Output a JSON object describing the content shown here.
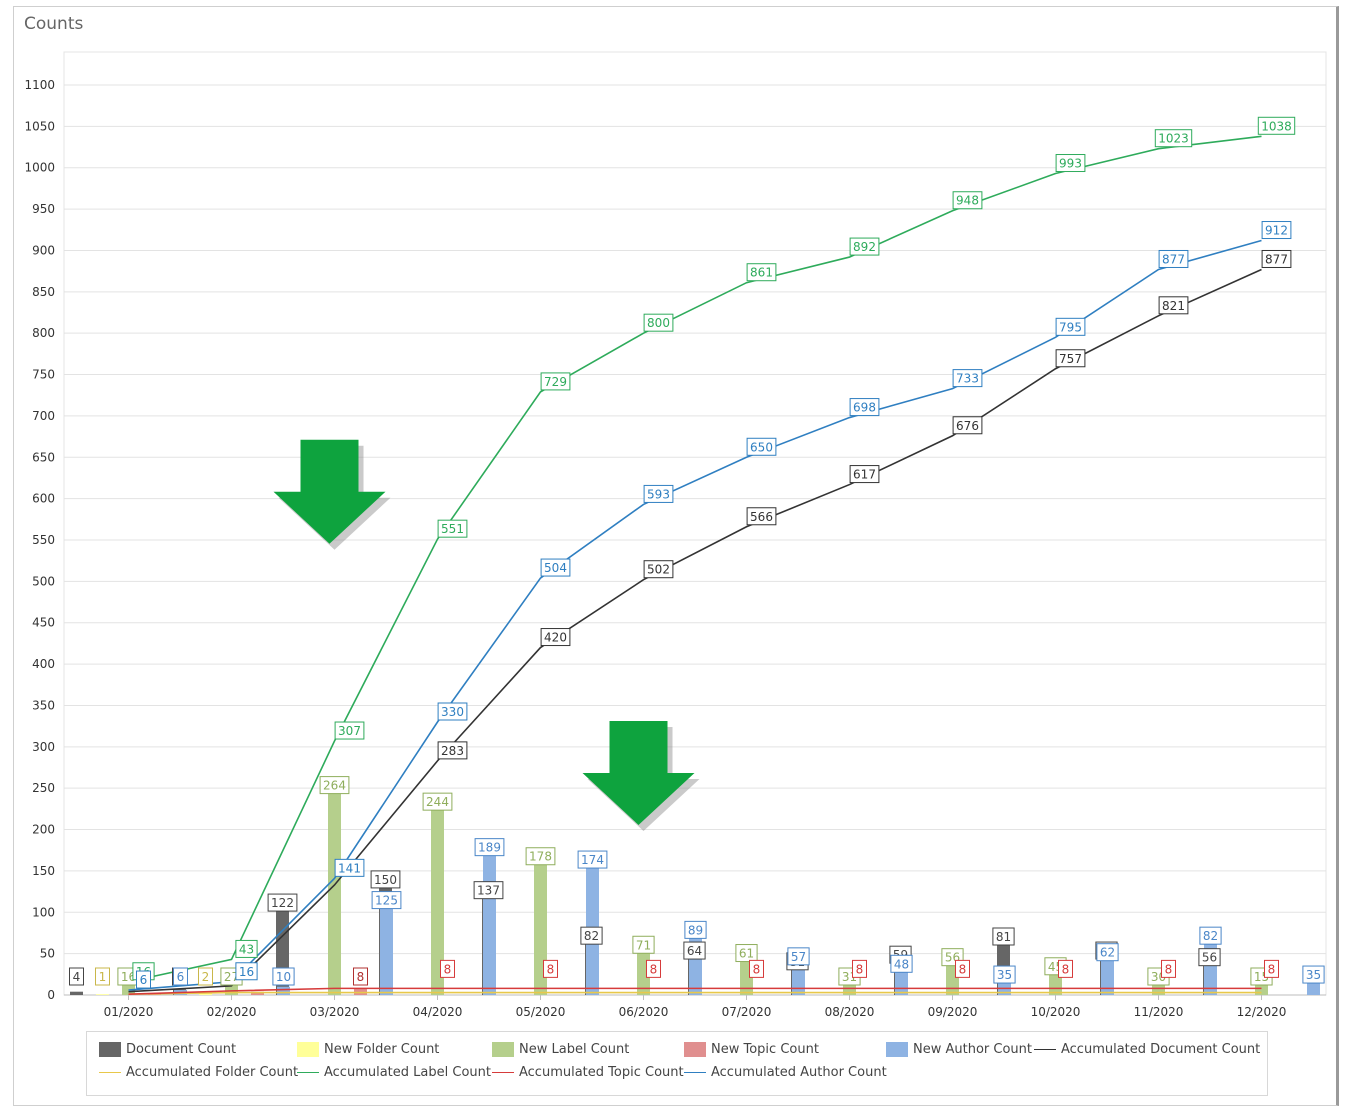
{
  "panel": {
    "title": "Counts"
  },
  "chart_data": {
    "type": "bar",
    "title": "Counts",
    "xlabel": "",
    "ylabel": "",
    "ylim": [
      0,
      1100
    ],
    "yticks": [
      0,
      50,
      100,
      150,
      200,
      250,
      300,
      350,
      400,
      450,
      500,
      550,
      600,
      650,
      700,
      750,
      800,
      850,
      900,
      950,
      1000,
      1050,
      1100
    ],
    "grid": true,
    "legend_position": "bottom",
    "categories": [
      "01/2020",
      "02/2020",
      "03/2020",
      "04/2020",
      "05/2020",
      "06/2020",
      "07/2020",
      "08/2020",
      "09/2020",
      "10/2020",
      "11/2020",
      "12/2020"
    ],
    "bar_series": [
      {
        "name": "Document Count",
        "color": "#666666",
        "values": [
          4,
          7,
          122,
          150,
          137,
          82,
          64,
          51,
          59,
          81,
          64,
          56
        ],
        "labels": [
          "4",
          "7",
          "122",
          "150",
          "137",
          "82",
          "64",
          "51",
          "59",
          "81",
          "64",
          "56"
        ]
      },
      {
        "name": "New Folder Count",
        "color": "#ffff99",
        "values": [
          1,
          2,
          0,
          0,
          0,
          0,
          0,
          0,
          0,
          0,
          0,
          0
        ],
        "labels": [
          "1",
          "2",
          "",
          "",
          "",
          "",
          "",
          "",
          "",
          "",
          "",
          ""
        ]
      },
      {
        "name": "New Label Count",
        "color": "#b5cf8c",
        "values": [
          16,
          27,
          264,
          244,
          178,
          71,
          61,
          31,
          56,
          45,
          30,
          15
        ],
        "labels": [
          "16",
          "27",
          "264",
          "244",
          "178",
          "71",
          "61",
          "31",
          "56",
          "45",
          "30",
          "15"
        ]
      },
      {
        "name": "New Topic Count",
        "color": "#e08f8f",
        "values": [
          1,
          4,
          8,
          0,
          0,
          0,
          0,
          0,
          0,
          0,
          0,
          0
        ],
        "labels": [
          "",
          "",
          "8",
          "",
          "",
          "",
          "",
          "",
          "",
          "",
          "",
          ""
        ]
      },
      {
        "name": "New Author Count",
        "color": "#8eb3e3",
        "values": [
          6,
          10,
          125,
          189,
          174,
          89,
          57,
          48,
          35,
          62,
          82,
          35
        ],
        "labels": [
          "6",
          "10",
          "125",
          "189",
          "174",
          "89",
          "57",
          "48",
          "35",
          "62",
          "82",
          "35"
        ]
      }
    ],
    "line_series": [
      {
        "name": "Accumulated Document Count",
        "color": "#333333",
        "values": [
          4,
          11,
          133,
          283,
          420,
          502,
          566,
          617,
          676,
          757,
          821,
          877
        ],
        "labels": [
          "",
          "",
          "",
          "283",
          "420",
          "502",
          "566",
          "617",
          "676",
          "757",
          "821",
          "877"
        ]
      },
      {
        "name": "Accumulated Folder Count",
        "color": "#e8c84a",
        "values": [
          1,
          3,
          3,
          3,
          3,
          3,
          3,
          3,
          3,
          3,
          3,
          3
        ],
        "labels": [
          "",
          "",
          "",
          "",
          "",
          "",
          "",
          "",
          "",
          "",
          "",
          ""
        ]
      },
      {
        "name": "Accumulated Label Count",
        "color": "#2eab5b",
        "values": [
          16,
          43,
          307,
          551,
          729,
          800,
          861,
          892,
          948,
          993,
          1023,
          1038
        ],
        "labels": [
          "16",
          "43",
          "307",
          "551",
          "729",
          "800",
          "861",
          "892",
          "948",
          "993",
          "1023",
          "1038"
        ]
      },
      {
        "name": "Accumulated Topic Count",
        "color": "#d63b3b",
        "values": [
          1,
          5,
          8,
          8,
          8,
          8,
          8,
          8,
          8,
          8,
          8,
          8
        ],
        "labels": [
          "",
          "",
          "",
          "8",
          "8",
          "8",
          "8",
          "8",
          "8",
          "8",
          "8",
          "8"
        ]
      },
      {
        "name": "Accumulated Author Count",
        "color": "#2f7fc1",
        "values": [
          6,
          16,
          141,
          330,
          504,
          593,
          650,
          698,
          733,
          795,
          877,
          912
        ],
        "labels": [
          "6",
          "16",
          "141",
          "330",
          "504",
          "593",
          "650",
          "698",
          "733",
          "795",
          "877",
          "912"
        ]
      }
    ],
    "annotations": [
      {
        "type": "arrow-down",
        "color": "#0ea33e",
        "category": "03/2020",
        "y": 560
      },
      {
        "type": "arrow-down",
        "color": "#0ea33e",
        "category": "06/2020",
        "y": 220
      }
    ]
  },
  "legend": {
    "items": [
      {
        "label": "Document Count",
        "kind": "swatch",
        "color": "#666666"
      },
      {
        "label": "New Folder Count",
        "kind": "swatch",
        "color": "#ffff99"
      },
      {
        "label": "New Label Count",
        "kind": "swatch",
        "color": "#b5cf8c"
      },
      {
        "label": "New Topic Count",
        "kind": "swatch",
        "color": "#e08f8f"
      },
      {
        "label": "New Author Count",
        "kind": "swatch",
        "color": "#8eb3e3"
      },
      {
        "label": "Accumulated Document Count",
        "kind": "line",
        "color": "#333333"
      },
      {
        "label": "Accumulated Folder Count",
        "kind": "line",
        "color": "#e8c84a"
      },
      {
        "label": "Accumulated Label Count",
        "kind": "line",
        "color": "#2eab5b"
      },
      {
        "label": "Accumulated Topic Count",
        "kind": "line",
        "color": "#d63b3b"
      },
      {
        "label": "Accumulated Author Count",
        "kind": "line",
        "color": "#2f7fc1"
      }
    ]
  }
}
